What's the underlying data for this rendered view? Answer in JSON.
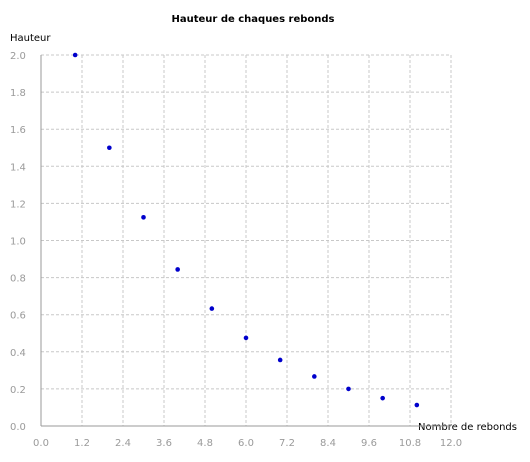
{
  "chart_data": {
    "type": "scatter",
    "title": "Hauteur de chaques rebonds",
    "xlabel": "Nombre de rebonds",
    "ylabel": "Hauteur",
    "xlim": [
      0,
      12
    ],
    "ylim": [
      0,
      2
    ],
    "x_ticks": [
      "0.0",
      "1.2",
      "2.4",
      "3.6",
      "4.8",
      "6.0",
      "7.2",
      "8.4",
      "9.6",
      "10.8",
      "12.0"
    ],
    "y_ticks": [
      "0.0",
      "0.2",
      "0.4",
      "0.6",
      "0.8",
      "1.0",
      "1.2",
      "1.4",
      "1.6",
      "1.8",
      "2.0"
    ],
    "grid": true,
    "marker_color": "#0000cc",
    "series": [
      {
        "x": [
          1,
          2,
          3,
          4,
          5,
          6,
          7,
          8,
          9,
          10,
          11
        ],
        "y": [
          2.0,
          1.5,
          1.125,
          0.844,
          0.633,
          0.475,
          0.356,
          0.267,
          0.2,
          0.15,
          0.113
        ]
      }
    ]
  }
}
